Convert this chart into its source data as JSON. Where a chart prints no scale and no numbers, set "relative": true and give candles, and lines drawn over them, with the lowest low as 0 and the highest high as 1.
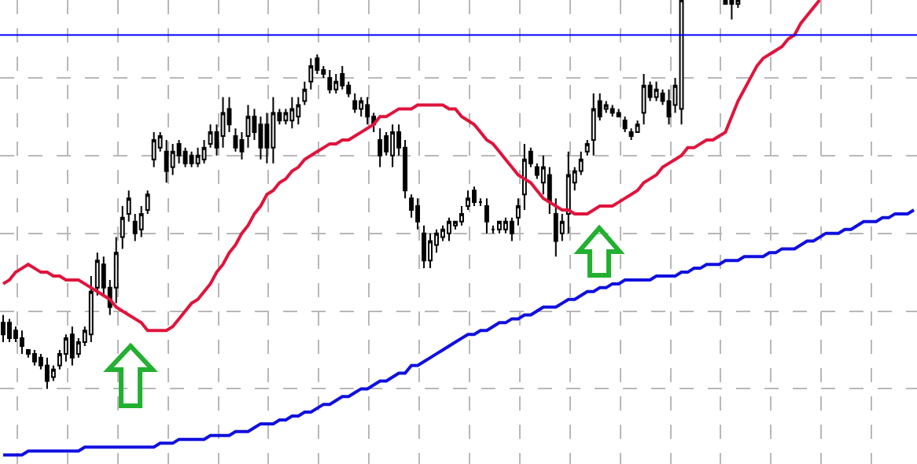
{
  "chart_data": {
    "type": "candlestick",
    "relative": true,
    "grid": true,
    "tick_labels": false,
    "marker": "none",
    "line_style": "solid",
    "categories": [
      null,
      null,
      null,
      null,
      null,
      null,
      null,
      null,
      null,
      null,
      null,
      null,
      null,
      null,
      null,
      null,
      null,
      null,
      null,
      null,
      null,
      null,
      null,
      null,
      null,
      null,
      null,
      null,
      null,
      null,
      null,
      null,
      null,
      null,
      null,
      null,
      null,
      null,
      null,
      null,
      null,
      null,
      null,
      null,
      null,
      null,
      null,
      null,
      null,
      null,
      null,
      null,
      null,
      null,
      null,
      null,
      null,
      null,
      null,
      null,
      null,
      null,
      null,
      null,
      null,
      null,
      null,
      null,
      null,
      null,
      null,
      null,
      null,
      null,
      null,
      null,
      null,
      null,
      null,
      null,
      null,
      null,
      null,
      null,
      null,
      null,
      null,
      null,
      null,
      null,
      null,
      null,
      null,
      null,
      null,
      null,
      null,
      null,
      null,
      null,
      null,
      null,
      null,
      null,
      null,
      null,
      null,
      null,
      null,
      null,
      null,
      null,
      null,
      null,
      null,
      null,
      null,
      null,
      null,
      null,
      null,
      null,
      null,
      null,
      null,
      null,
      null,
      null,
      null,
      null,
      null,
      null,
      null,
      null,
      null,
      null,
      null,
      null,
      null,
      null,
      null,
      null,
      null,
      null,
      null,
      null
    ],
    "ohlc": [
      [
        0.17,
        0.19,
        0.12,
        0.14
      ],
      [
        0.17,
        0.18,
        0.12,
        0.13
      ],
      [
        0.15,
        0.16,
        0.12,
        0.13
      ],
      [
        0.13,
        0.15,
        0.09,
        0.11
      ],
      [
        0.1,
        0.1,
        0.08,
        0.09
      ],
      [
        0.09,
        0.1,
        0.06,
        0.07
      ],
      [
        0.08,
        0.09,
        0.05,
        0.06
      ],
      [
        0.06,
        0.08,
        0.0,
        0.02
      ],
      [
        0.03,
        0.06,
        0.02,
        0.05
      ],
      [
        0.06,
        0.1,
        0.05,
        0.09
      ],
      [
        0.09,
        0.14,
        0.07,
        0.13
      ],
      [
        0.14,
        0.16,
        0.06,
        0.08
      ],
      [
        0.09,
        0.13,
        0.08,
        0.12
      ],
      [
        0.12,
        0.16,
        0.11,
        0.15
      ],
      [
        0.14,
        0.29,
        0.12,
        0.25
      ],
      [
        0.26,
        0.35,
        0.24,
        0.33
      ],
      [
        0.32,
        0.34,
        0.24,
        0.26
      ],
      [
        0.26,
        0.28,
        0.19,
        0.21
      ],
      [
        0.26,
        0.39,
        0.22,
        0.35
      ],
      [
        0.39,
        0.47,
        0.36,
        0.44
      ],
      [
        0.45,
        0.51,
        0.43,
        0.49
      ],
      [
        0.43,
        0.45,
        0.38,
        0.4
      ],
      [
        0.41,
        0.47,
        0.39,
        0.45
      ],
      [
        0.46,
        0.51,
        0.45,
        0.5
      ],
      [
        0.59,
        0.66,
        0.57,
        0.64
      ],
      [
        0.62,
        0.66,
        0.61,
        0.65
      ],
      [
        0.61,
        0.64,
        0.53,
        0.56
      ],
      [
        0.57,
        0.63,
        0.55,
        0.61
      ],
      [
        0.63,
        0.64,
        0.58,
        0.6
      ],
      [
        0.61,
        0.62,
        0.57,
        0.58
      ],
      [
        0.6,
        0.61,
        0.57,
        0.58
      ],
      [
        0.58,
        0.62,
        0.57,
        0.6
      ],
      [
        0.59,
        0.64,
        0.58,
        0.62
      ],
      [
        0.63,
        0.68,
        0.62,
        0.66
      ],
      [
        0.66,
        0.68,
        0.6,
        0.62
      ],
      [
        0.65,
        0.75,
        0.62,
        0.71
      ],
      [
        0.72,
        0.75,
        0.66,
        0.68
      ],
      [
        0.65,
        0.67,
        0.61,
        0.62
      ],
      [
        0.64,
        0.66,
        0.59,
        0.61
      ],
      [
        0.65,
        0.73,
        0.62,
        0.7
      ],
      [
        0.7,
        0.72,
        0.64,
        0.66
      ],
      [
        0.68,
        0.7,
        0.59,
        0.62
      ],
      [
        0.68,
        0.71,
        0.58,
        0.62
      ],
      [
        0.62,
        0.75,
        0.58,
        0.71
      ],
      [
        0.71,
        0.72,
        0.68,
        0.69
      ],
      [
        0.69,
        0.72,
        0.68,
        0.71
      ],
      [
        0.69,
        0.75,
        0.67,
        0.72
      ],
      [
        0.7,
        0.75,
        0.68,
        0.73
      ],
      [
        0.74,
        0.79,
        0.73,
        0.77
      ],
      [
        0.79,
        0.85,
        0.77,
        0.83
      ],
      [
        0.85,
        0.86,
        0.81,
        0.82
      ],
      [
        0.82,
        0.83,
        0.8,
        0.81
      ],
      [
        0.8,
        0.82,
        0.76,
        0.77
      ],
      [
        0.77,
        0.81,
        0.76,
        0.79
      ],
      [
        0.81,
        0.83,
        0.77,
        0.78
      ],
      [
        0.78,
        0.79,
        0.75,
        0.76
      ],
      [
        0.74,
        0.76,
        0.71,
        0.72
      ],
      [
        0.72,
        0.75,
        0.7,
        0.74
      ],
      [
        0.73,
        0.75,
        0.68,
        0.7
      ],
      [
        0.7,
        0.71,
        0.66,
        0.68
      ],
      [
        0.64,
        0.67,
        0.57,
        0.6
      ],
      [
        0.65,
        0.66,
        0.6,
        0.61
      ],
      [
        0.6,
        0.68,
        0.57,
        0.66
      ],
      [
        0.66,
        0.68,
        0.6,
        0.62
      ],
      [
        0.62,
        0.64,
        0.49,
        0.51
      ],
      [
        0.49,
        0.5,
        0.44,
        0.46
      ],
      [
        0.47,
        0.49,
        0.41,
        0.43
      ],
      [
        0.4,
        0.42,
        0.31,
        0.33
      ],
      [
        0.33,
        0.4,
        0.31,
        0.38
      ],
      [
        0.37,
        0.41,
        0.35,
        0.4
      ],
      [
        0.39,
        0.42,
        0.38,
        0.41
      ],
      [
        0.4,
        0.44,
        0.38,
        0.43
      ],
      [
        0.42,
        0.43,
        0.41,
        0.43
      ],
      [
        0.43,
        0.47,
        0.42,
        0.45
      ],
      [
        0.47,
        0.51,
        0.46,
        0.49
      ],
      [
        0.51,
        0.52,
        0.47,
        0.48
      ],
      [
        0.48,
        0.49,
        0.47,
        0.48
      ],
      [
        0.47,
        0.49,
        0.4,
        0.43
      ],
      [
        0.41,
        0.42,
        0.4,
        0.41
      ],
      [
        0.41,
        0.43,
        0.4,
        0.43
      ],
      [
        0.41,
        0.44,
        0.4,
        0.43
      ],
      [
        0.43,
        0.44,
        0.38,
        0.4
      ],
      [
        0.44,
        0.49,
        0.42,
        0.47
      ],
      [
        0.5,
        0.63,
        0.46,
        0.59
      ],
      [
        0.61,
        0.62,
        0.57,
        0.58
      ],
      [
        0.57,
        0.58,
        0.54,
        0.55
      ],
      [
        0.53,
        0.6,
        0.5,
        0.57
      ],
      [
        0.55,
        0.57,
        0.45,
        0.48
      ],
      [
        0.45,
        0.49,
        0.34,
        0.38
      ],
      [
        0.4,
        0.45,
        0.38,
        0.43
      ],
      [
        0.45,
        0.61,
        0.4,
        0.55
      ],
      [
        0.53,
        0.57,
        0.51,
        0.56
      ],
      [
        0.56,
        0.61,
        0.55,
        0.59
      ],
      [
        0.61,
        0.64,
        0.6,
        0.63
      ],
      [
        0.64,
        0.76,
        0.6,
        0.72
      ],
      [
        0.74,
        0.76,
        0.69,
        0.7
      ],
      [
        0.72,
        0.74,
        0.71,
        0.73
      ],
      [
        0.72,
        0.73,
        0.7,
        0.71
      ],
      [
        0.71,
        0.72,
        0.7,
        0.7
      ],
      [
        0.69,
        0.7,
        0.66,
        0.67
      ],
      [
        0.66,
        0.67,
        0.64,
        0.65
      ],
      [
        0.66,
        0.69,
        0.66,
        0.68
      ],
      [
        0.71,
        0.81,
        0.68,
        0.78
      ],
      [
        0.78,
        0.79,
        0.74,
        0.75
      ],
      [
        0.75,
        0.79,
        0.74,
        0.77
      ],
      [
        0.76,
        0.77,
        0.73,
        0.74
      ],
      [
        0.74,
        0.77,
        0.68,
        0.7
      ],
      [
        0.73,
        0.8,
        0.71,
        0.78
      ],
      [
        0.72,
        1.0,
        0.68,
        1.0
      ],
      null,
      null,
      null,
      null,
      null,
      null,
      [
        1.0,
        1.0,
        0.99,
        0.99
      ],
      [
        1.0,
        1.0,
        0.95,
        0.99
      ],
      [
        0.99,
        1.0,
        0.98,
        1.0
      ],
      null,
      null,
      null,
      null,
      null,
      null,
      null,
      null,
      null,
      null,
      null,
      null,
      null,
      null,
      null,
      null,
      null,
      null,
      null,
      null,
      null,
      null,
      null,
      null,
      null,
      null,
      null,
      null
    ],
    "series": [
      {
        "type": "line",
        "color": "#e0143c",
        "values": [
          0.27,
          0.28,
          0.3,
          0.31,
          0.32,
          0.31,
          0.3,
          0.3,
          0.29,
          0.29,
          0.28,
          0.28,
          0.28,
          0.27,
          0.26,
          0.25,
          0.24,
          0.23,
          0.21,
          0.2,
          0.19,
          0.18,
          0.17,
          0.15,
          0.15,
          0.15,
          0.15,
          0.16,
          0.18,
          0.2,
          0.22,
          0.23,
          0.25,
          0.27,
          0.3,
          0.32,
          0.35,
          0.37,
          0.4,
          0.42,
          0.45,
          0.47,
          0.5,
          0.51,
          0.53,
          0.54,
          0.56,
          0.57,
          0.59,
          0.6,
          0.61,
          0.62,
          0.63,
          0.63,
          0.64,
          0.64,
          0.65,
          0.66,
          0.67,
          0.68,
          0.7,
          0.7,
          0.71,
          0.72,
          0.72,
          0.72,
          0.73,
          0.73,
          0.73,
          0.73,
          0.73,
          0.72,
          0.72,
          0.7,
          0.69,
          0.68,
          0.66,
          0.64,
          0.63,
          0.61,
          0.59,
          0.57,
          0.55,
          0.54,
          0.53,
          0.51,
          0.49,
          0.48,
          0.47,
          0.46,
          0.46,
          0.45,
          0.45,
          0.45,
          0.46,
          0.47,
          0.47,
          0.47,
          0.48,
          0.49,
          0.5,
          0.51,
          0.53,
          0.54,
          0.55,
          0.57,
          0.58,
          0.59,
          0.6,
          0.62,
          0.62,
          0.63,
          0.64,
          0.64,
          0.65,
          0.66,
          0.7,
          0.74,
          0.77,
          0.8,
          0.83,
          0.85,
          0.86,
          0.87,
          0.88,
          0.9,
          0.91,
          0.94,
          0.96,
          0.98,
          1.0,
          null,
          null,
          null,
          null,
          null,
          null,
          null,
          null,
          null,
          null,
          null,
          null,
          null,
          null,
          null
        ]
      },
      {
        "type": "line",
        "color": "#1010e0",
        "values": [
          -0.17,
          -0.17,
          -0.17,
          -0.17,
          -0.16,
          -0.16,
          -0.16,
          -0.16,
          -0.16,
          -0.16,
          -0.16,
          -0.16,
          -0.16,
          -0.15,
          -0.15,
          -0.15,
          -0.15,
          -0.15,
          -0.15,
          -0.15,
          -0.15,
          -0.15,
          -0.15,
          -0.15,
          -0.15,
          -0.14,
          -0.14,
          -0.14,
          -0.13,
          -0.13,
          -0.13,
          -0.13,
          -0.13,
          -0.12,
          -0.12,
          -0.12,
          -0.12,
          -0.11,
          -0.11,
          -0.11,
          -0.1,
          -0.09,
          -0.09,
          -0.09,
          -0.08,
          -0.08,
          -0.07,
          -0.07,
          -0.06,
          -0.06,
          -0.05,
          -0.04,
          -0.04,
          -0.03,
          -0.02,
          -0.02,
          -0.01,
          0.0,
          0.0,
          0.01,
          0.02,
          0.02,
          0.03,
          0.04,
          0.04,
          0.06,
          0.06,
          0.07,
          0.08,
          0.09,
          0.1,
          0.11,
          0.12,
          0.13,
          0.14,
          0.14,
          0.15,
          0.15,
          0.16,
          0.17,
          0.17,
          0.18,
          0.18,
          0.19,
          0.19,
          0.2,
          0.21,
          0.21,
          0.21,
          0.22,
          0.23,
          0.23,
          0.24,
          0.25,
          0.25,
          0.26,
          0.26,
          0.27,
          0.27,
          0.28,
          0.28,
          0.28,
          0.28,
          0.28,
          0.29,
          0.29,
          0.29,
          0.29,
          0.3,
          0.3,
          0.31,
          0.31,
          0.32,
          0.32,
          0.32,
          0.33,
          0.33,
          0.33,
          0.34,
          0.34,
          0.34,
          0.34,
          0.35,
          0.35,
          0.36,
          0.36,
          0.36,
          0.37,
          0.38,
          0.38,
          0.39,
          0.4,
          0.4,
          0.4,
          0.41,
          0.41,
          0.42,
          0.43,
          0.43,
          0.43,
          0.44,
          0.44,
          0.45,
          0.45,
          0.45,
          0.46
        ]
      }
    ],
    "ref_lines": [
      {
        "axis": "y",
        "value": 0.91,
        "color": "#0000ff"
      }
    ]
  }
}
